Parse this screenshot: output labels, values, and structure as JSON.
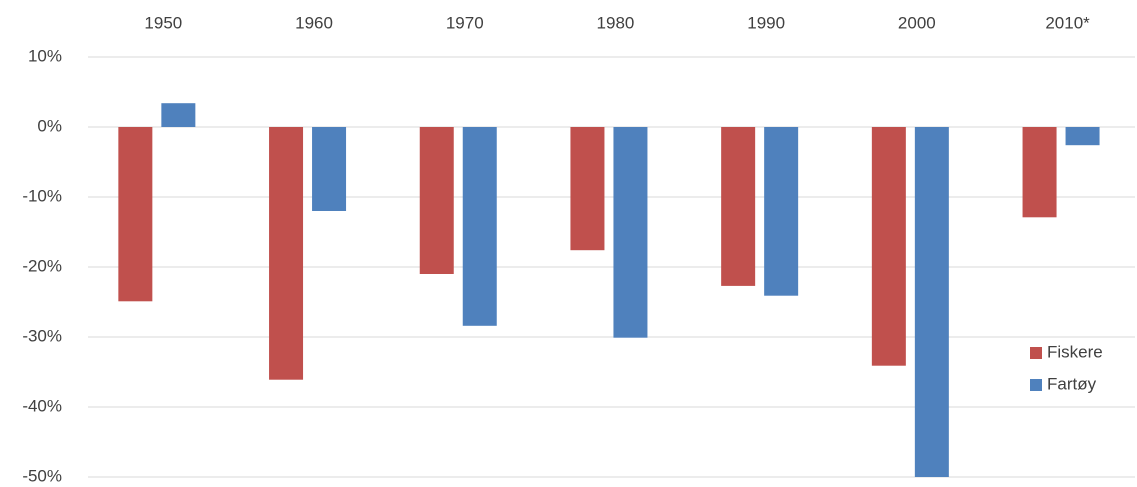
{
  "chart_data": {
    "type": "bar",
    "categories": [
      "1950",
      "1960",
      "1970",
      "1980",
      "1990",
      "2000",
      "2010*"
    ],
    "series": [
      {
        "name": "Fiskere",
        "color": "#c0504d",
        "values": [
          -24.9,
          -36.1,
          -21,
          -17.6,
          -22.7,
          -34.1,
          -12.9
        ]
      },
      {
        "name": "Fartøy",
        "color": "#4f81bd",
        "values": [
          3.4,
          -12,
          -28.4,
          -30.1,
          -24.1,
          -50,
          -2.6
        ]
      }
    ],
    "ylim": [
      -50,
      10
    ],
    "yticks": [
      {
        "value": -50,
        "label": "-50%"
      },
      {
        "value": -40,
        "label": "-40%"
      },
      {
        "value": -30,
        "label": "-30%"
      },
      {
        "value": -20,
        "label": "-20%"
      },
      {
        "value": -10,
        "label": "-10%"
      },
      {
        "value": 0,
        "label": "0%"
      },
      {
        "value": 10,
        "label": "10%"
      }
    ],
    "grid": true,
    "legend": "right"
  }
}
